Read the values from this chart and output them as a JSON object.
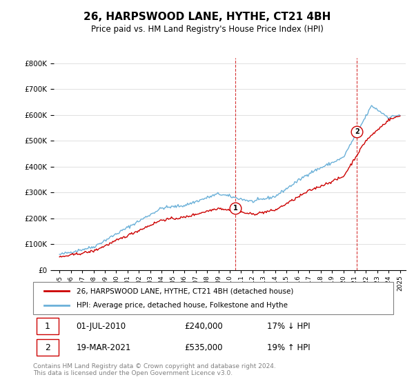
{
  "title": "26, HARPSWOOD LANE, HYTHE, CT21 4BH",
  "subtitle": "Price paid vs. HM Land Registry's House Price Index (HPI)",
  "legend_line1": "26, HARPSWOOD LANE, HYTHE, CT21 4BH (detached house)",
  "legend_line2": "HPI: Average price, detached house, Folkestone and Hythe",
  "transaction1_label": "1",
  "transaction1_date": "01-JUL-2010",
  "transaction1_price": "£240,000",
  "transaction1_hpi": "17% ↓ HPI",
  "transaction2_label": "2",
  "transaction2_date": "19-MAR-2021",
  "transaction2_price": "£535,000",
  "transaction2_hpi": "19% ↑ HPI",
  "footnote": "Contains HM Land Registry data © Crown copyright and database right 2024.\nThis data is licensed under the Open Government Licence v3.0.",
  "hpi_color": "#6ab0d8",
  "price_color": "#cc0000",
  "dashed_line_color": "#cc0000",
  "ylim": [
    0,
    820000
  ],
  "yticks": [
    0,
    100000,
    200000,
    300000,
    400000,
    500000,
    600000,
    700000,
    800000
  ],
  "year_start": 1995,
  "year_end": 2025
}
